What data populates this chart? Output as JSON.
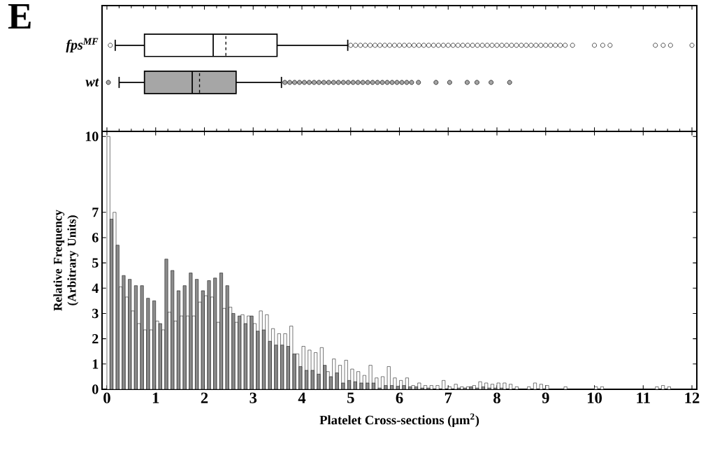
{
  "chart_data": [
    {
      "type": "box",
      "title": "E",
      "orientation": "horizontal",
      "categories": [
        "fps$^{MF}$",
        "wt"
      ],
      "colors": [
        "#ffffff",
        "#a6a6a6"
      ],
      "boxes": [
        {
          "low": 0.17,
          "q1": 0.77,
          "median": 2.18,
          "q3": 3.49,
          "high": 4.94,
          "mean": 2.44,
          "outliers": [
            0.07,
            5.0,
            5.1,
            5.2,
            5.3,
            5.4,
            5.5,
            5.6,
            5.7,
            5.8,
            5.9,
            6.0,
            6.1,
            6.2,
            6.3,
            6.4,
            6.5,
            6.6,
            6.7,
            6.8,
            6.9,
            7.0,
            7.1,
            7.2,
            7.3,
            7.4,
            7.5,
            7.6,
            7.7,
            7.8,
            7.9,
            8.0,
            8.1,
            8.2,
            8.3,
            8.4,
            8.5,
            8.6,
            8.7,
            8.8,
            8.9,
            9.0,
            9.1,
            9.2,
            9.3,
            9.4,
            9.55,
            10.0,
            10.17,
            10.32,
            11.25,
            11.41,
            11.56,
            12.0
          ]
        },
        {
          "low": 0.25,
          "q1": 0.77,
          "median": 1.75,
          "q3": 2.65,
          "high": 3.58,
          "mean": 1.9,
          "outliers": [
            0.03,
            3.65,
            3.75,
            3.85,
            3.95,
            4.05,
            4.15,
            4.25,
            4.35,
            4.45,
            4.55,
            4.65,
            4.75,
            4.85,
            4.95,
            5.05,
            5.15,
            5.25,
            5.35,
            5.45,
            5.55,
            5.65,
            5.75,
            5.85,
            5.95,
            6.05,
            6.15,
            6.25,
            6.39,
            6.75,
            7.03,
            7.39,
            7.59,
            7.88,
            8.26
          ]
        }
      ],
      "xlim": [
        -0.1,
        12.1
      ],
      "xticks": [
        0,
        1,
        2,
        3,
        4,
        5,
        6,
        7,
        8,
        9,
        10,
        11,
        12
      ],
      "tick_labels": "y"
    },
    {
      "type": "histogram",
      "xlabel": "Platelet Cross-sections (μm$^{2}$)",
      "ylabel": "Relative Frequency (Arbitrary Units)",
      "bins": [
        0,
        0.125,
        0.25,
        0.375,
        0.5,
        0.625,
        0.75,
        0.875,
        1,
        1.125,
        1.25,
        1.375,
        1.5,
        1.625,
        1.75,
        1.875,
        2,
        2.125,
        2.25,
        2.375,
        2.5,
        2.625,
        2.75,
        2.875,
        3,
        3.125,
        3.25,
        3.375,
        3.5,
        3.625,
        3.75,
        3.875,
        4,
        4.125,
        4.25,
        4.375,
        4.5,
        4.625,
        4.75,
        4.875,
        5,
        5.125,
        5.25,
        5.375,
        5.5,
        5.625,
        5.75,
        5.875,
        6,
        6.125,
        6.25,
        6.375,
        6.5,
        6.625,
        6.75,
        6.875,
        7,
        7.125,
        7.25,
        7.375,
        7.5,
        7.625,
        7.75,
        7.875,
        8,
        8.125,
        8.25,
        8.375,
        8.5,
        8.625,
        8.75,
        8.875,
        9,
        9.125,
        9.25,
        9.375,
        9.5,
        9.625,
        9.75,
        9.875,
        10,
        10.125,
        10.25,
        10.375,
        10.5,
        10.625,
        10.75,
        10.875,
        11,
        11.125,
        11.25,
        11.375,
        11.5,
        11.625,
        11.75,
        11.875,
        12
      ],
      "series": [
        {
          "color": "#ffffff",
          "values": [
            10,
            7.0,
            4.05,
            3.65,
            3.1,
            2.6,
            2.35,
            2.35,
            2.7,
            2.35,
            3.05,
            2.7,
            2.9,
            2.9,
            2.9,
            3.45,
            3.7,
            3.65,
            2.65,
            3.2,
            3.25,
            2.65,
            2.95,
            2.9,
            2.6,
            3.1,
            2.95,
            2.4,
            2.2,
            2.2,
            2.5,
            1.4,
            1.7,
            1.55,
            1.45,
            1.65,
            0.7,
            1.2,
            0.95,
            1.15,
            0.8,
            0.7,
            0.55,
            0.95,
            0.45,
            0.5,
            0.9,
            0.45,
            0.35,
            0.45,
            0.15,
            0.25,
            0.15,
            0.15,
            0.15,
            0.35,
            0.1,
            0.2,
            0.1,
            0.1,
            0.15,
            0.3,
            0.25,
            0.2,
            0.25,
            0.25,
            0.2,
            0.1,
            0,
            0.1,
            0.25,
            0.2,
            0.15,
            0,
            0,
            0.1,
            0,
            0,
            0,
            0,
            0.1,
            0.1,
            0,
            0,
            0,
            0,
            0,
            0,
            0,
            0,
            0.1,
            0.15,
            0.1,
            0,
            0,
            0
          ]
        },
        {
          "color": "#8c8c8c",
          "values": [
            6.73,
            5.7,
            4.5,
            4.35,
            4.1,
            4.1,
            3.6,
            3.5,
            2.6,
            5.15,
            4.7,
            3.9,
            4.1,
            4.6,
            4.35,
            3.9,
            4.3,
            4.4,
            4.6,
            4.1,
            3.0,
            2.9,
            2.6,
            2.9,
            2.3,
            2.35,
            1.9,
            1.75,
            1.75,
            1.7,
            1.4,
            0.9,
            0.75,
            0.75,
            0.6,
            0.95,
            0.5,
            0.65,
            0.25,
            0.35,
            0.3,
            0.25,
            0.25,
            0.25,
            0.05,
            0.15,
            0.15,
            0.12,
            0.15,
            0.1,
            0.1,
            0.05,
            0.05,
            0,
            0,
            0,
            0,
            0.05,
            0.05,
            0.1,
            0.05,
            0.1,
            0.05,
            0.05,
            0.05,
            0,
            0,
            0,
            0,
            0,
            0,
            0,
            0,
            0,
            0,
            0,
            0,
            0,
            0,
            0,
            0,
            0,
            0,
            0,
            0,
            0,
            0,
            0,
            0,
            0,
            0,
            0,
            0,
            0,
            0,
            0
          ]
        }
      ],
      "xlim": [
        -0.1,
        12.1
      ],
      "xticks": [
        0,
        1,
        2,
        3,
        4,
        5,
        6,
        7,
        8,
        9,
        10,
        11,
        12
      ],
      "ylim": [
        0,
        10.2
      ],
      "yticks": [
        0,
        1,
        2,
        3,
        4,
        5,
        6,
        7,
        10
      ]
    }
  ]
}
